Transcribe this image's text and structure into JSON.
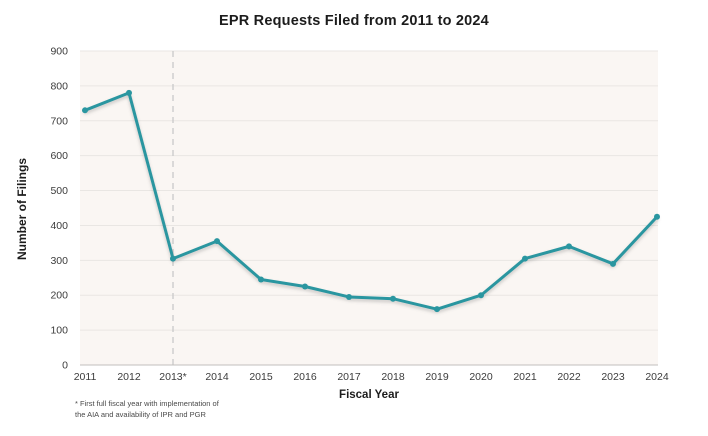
{
  "chart": {
    "title": "EPR Requests Filed from 2011 to 2024",
    "x_axis_label": "Fiscal Year",
    "y_axis_label": "Number of Filings",
    "footnote_line1": "* First full fiscal year with implementation of",
    "footnote_line2": "the AIA and availability of IPR and PGR"
  },
  "chart_data": {
    "type": "line",
    "title": "EPR Requests Filed from 2011 to 2024",
    "xlabel": "Fiscal Year",
    "ylabel": "Number of Filings",
    "categories": [
      "2011",
      "2012",
      "2013*",
      "2014",
      "2015",
      "2016",
      "2017",
      "2018",
      "2019",
      "2020",
      "2021",
      "2022",
      "2023",
      "2024"
    ],
    "values": [
      730,
      780,
      305,
      355,
      245,
      225,
      195,
      190,
      160,
      200,
      305,
      340,
      290,
      425
    ],
    "ylim": [
      0,
      900
    ],
    "ytick_interval": 100,
    "yticks": [
      0,
      100,
      200,
      300,
      400,
      500,
      600,
      700,
      800,
      900
    ],
    "grid": "horizontal",
    "legend": "none",
    "annotation": {
      "type": "dashed-vertical-line",
      "at_category": "2013*",
      "note": "* First full fiscal year with implementation of the AIA and availability of IPR and PGR"
    }
  },
  "colors": {
    "line": "#2a96a0",
    "marker": "#2a96a0",
    "plot_background": "#faf6f3",
    "gridline": "#e9e6e3",
    "axis_line": "#c2bfbc",
    "dashed_line": "#c9c9c9",
    "tick_text": "#3c3c3c",
    "title_text": "#1c1c1c"
  }
}
